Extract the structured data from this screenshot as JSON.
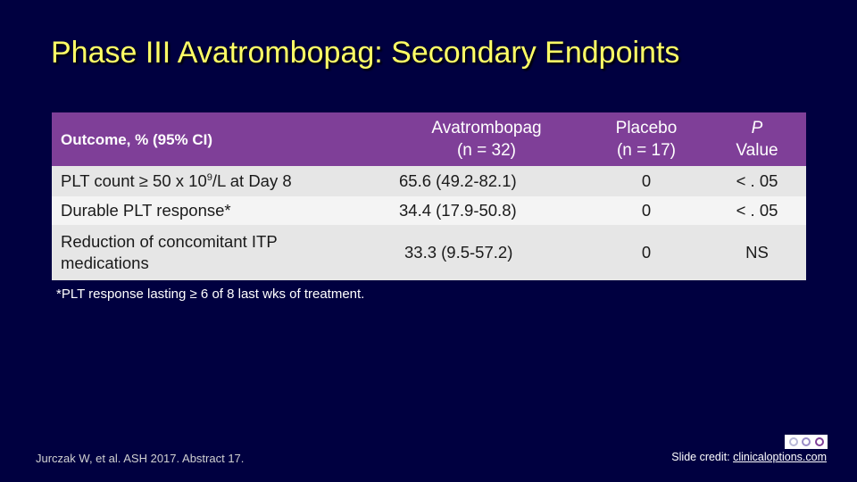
{
  "slide": {
    "title": "Phase III Avatrombopag: Secondary Endpoints",
    "footnote": "*PLT response lasting ≥ 6 of 8 last wks of treatment.",
    "citation": "Jurczak W, et al. ASH 2017. Abstract 17.",
    "credit_prefix": "Slide credit: ",
    "credit_link": "clinicaloptions.com"
  },
  "table": {
    "headers": {
      "outcome": "Outcome, % (95% CI)",
      "avatrombopag_line1": "Avatrombopag",
      "avatrombopag_line2": "(n = 32)",
      "placebo_line1": "Placebo",
      "placebo_line2": "(n = 17)",
      "p_line1": "P",
      "p_line2": "Value"
    },
    "rows": [
      {
        "outcome_prefix": "PLT count ≥ 50 x 10",
        "outcome_sup": "9",
        "outcome_suffix": "/L at Day 8",
        "avatrombopag": "65.6 (49.2-82.1)",
        "placebo": "0",
        "p_value": "< . 05"
      },
      {
        "outcome": "Durable PLT response*",
        "avatrombopag": "34.4 (17.9-50.8)",
        "placebo": "0",
        "p_value": "< . 05"
      },
      {
        "outcome_line1": "Reduction of concomitant ITP",
        "outcome_line2": "medications",
        "avatrombopag": "33.3 (9.5-57.2)",
        "placebo": "0",
        "p_value": "NS"
      }
    ]
  },
  "colors": {
    "background": "#000040",
    "title": "#FFFF66",
    "header_bg": "#7F3F98",
    "row_bg_dark": "#E6E6E6",
    "row_bg_light": "#F4F4F4"
  },
  "icons": {
    "logo": "cco-logo-icon"
  }
}
